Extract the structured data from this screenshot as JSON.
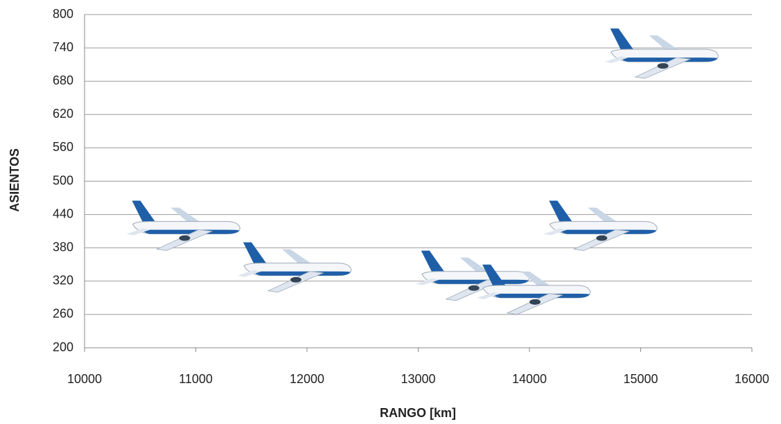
{
  "chart_data": {
    "type": "scatter",
    "xlabel": "RANGO [km]",
    "ylabel": "ASIENTOS",
    "x": [
      15200,
      10900,
      11900,
      13500,
      14050,
      14650
    ],
    "values": [
      725,
      415,
      340,
      325,
      300,
      415
    ],
    "color": "#1f5fa8",
    "xlim": [
      10000,
      16000
    ],
    "xticks": [
      10000,
      11000,
      12000,
      13000,
      14000,
      15000,
      16000
    ],
    "ylim": [
      200,
      800
    ],
    "yticks": [
      200,
      260,
      320,
      380,
      440,
      500,
      560,
      620,
      680,
      740,
      800
    ],
    "grid": true
  }
}
